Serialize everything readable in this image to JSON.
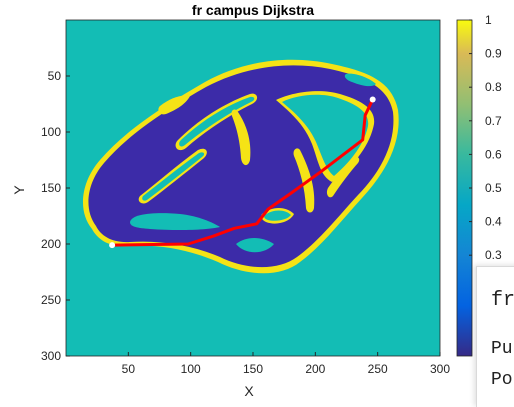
{
  "figure": {
    "title": "fr campus Dijkstra",
    "xlabel": "X",
    "ylabel": "Y"
  },
  "colors": {
    "background": "#13bdb5",
    "obstacle": "#3c2ba8",
    "edge": "#f5e316",
    "path": "#ff0000",
    "marker": "#ffffff"
  },
  "colorbar": {
    "ticks": [
      "1",
      "0.9",
      "0.8",
      "0.7",
      "0.6",
      "0.5",
      "0.4",
      "0.3"
    ]
  },
  "chart_data": {
    "type": "heatmap",
    "title": "fr campus Dijkstra",
    "xlabel": "X",
    "ylabel": "Y",
    "xlim": [
      0,
      300
    ],
    "ylim": [
      300,
      0
    ],
    "xticks": [
      "50",
      "100",
      "150",
      "200",
      "250",
      "300"
    ],
    "yticks": [
      "50",
      "100",
      "150",
      "200",
      "250",
      "300"
    ],
    "colormap": "parula",
    "clim": [
      0,
      1
    ],
    "path": {
      "x": [
        37,
        98,
        118,
        135,
        153,
        162,
        180,
        205,
        238,
        240,
        246
      ],
      "y": [
        201,
        200,
        193,
        186,
        182,
        169,
        155,
        135,
        107,
        85,
        71
      ]
    },
    "start": [
      37,
      201
    ],
    "goal": [
      246,
      71
    ]
  },
  "popup": {
    "title": "fr",
    "line1": "Pu",
    "line2": "Po"
  }
}
